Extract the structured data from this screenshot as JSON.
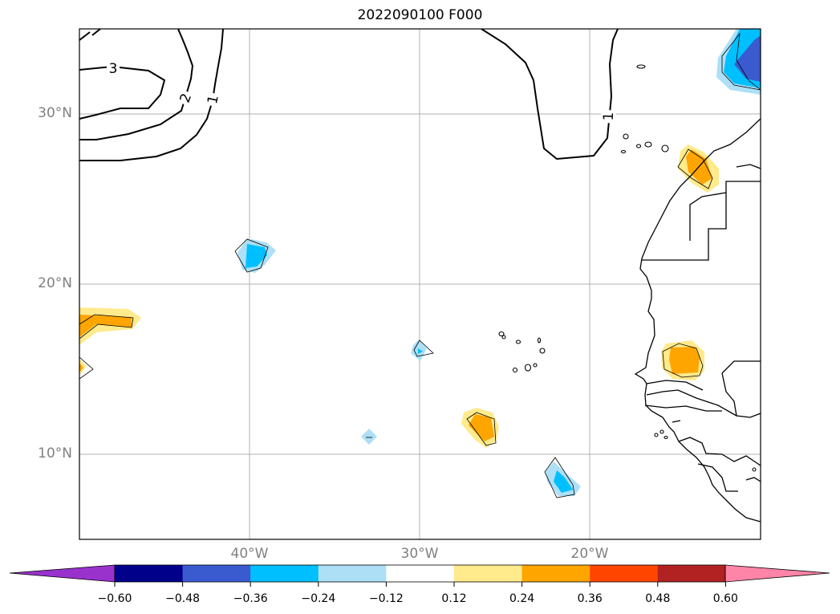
{
  "title": "2022090100 F000",
  "map": {
    "lat_labels": [
      "30°N",
      "20°N",
      "10°N"
    ],
    "lon_labels": [
      "40°W",
      "30°W",
      "20°W"
    ],
    "contour_labels": [
      "3",
      "2",
      "1",
      "1"
    ]
  },
  "colorbar": {
    "ticks": [
      "−0.60",
      "−0.48",
      "−0.36",
      "−0.24",
      "−0.12",
      "0.12",
      "0.24",
      "0.36",
      "0.48",
      "0.60"
    ],
    "colors": [
      "#9932CC",
      "#00008B",
      "#3A5BD0",
      "#00BFFF",
      "#ADE0F7",
      "#FFFFFF",
      "#FFEA8C",
      "#FFA500",
      "#FF4500",
      "#B22222",
      "#FF85A8",
      "#FF85A8"
    ]
  }
}
